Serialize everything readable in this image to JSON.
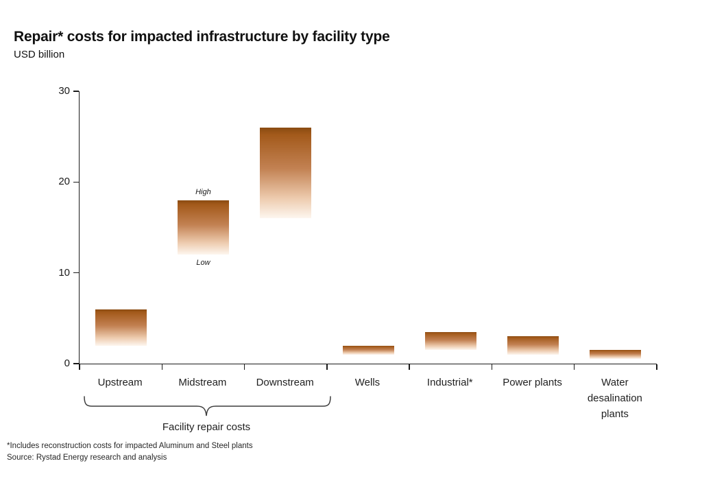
{
  "header": {
    "title": "Repair* costs for impacted infrastructure by facility type",
    "units_label": "USD billion"
  },
  "chart_data": {
    "type": "bar",
    "subtype": "floating range bars (low-high)",
    "title": "Repair* costs for impacted infrastructure by facility type",
    "ylabel": "USD billion",
    "xlabel": "",
    "ylim": [
      0,
      30
    ],
    "yticks": [
      0,
      10,
      20,
      30
    ],
    "grid": false,
    "legend_position": "none",
    "bar_gradient_top": "#8A4B11",
    "bar_gradient_bottom": "#FDF6EF",
    "gradient_stops": [
      "#8A4B11 0%",
      "#A35A1B 8%",
      "#C28152 45%",
      "#EDCBAE 78%",
      "#FDF6EF 100%"
    ],
    "categories": [
      "Upstream",
      "Midstream",
      "Downstream",
      "Wells",
      "Industrial*",
      "Power plants",
      "Water desalination plants"
    ],
    "bars": [
      {
        "category": "Upstream",
        "low": 2,
        "high": 6
      },
      {
        "category": "Midstream",
        "low": 12,
        "high": 18
      },
      {
        "category": "Downstream",
        "low": 16,
        "high": 26
      },
      {
        "category": "Wells",
        "low": 1,
        "high": 2
      },
      {
        "category": "Industrial*",
        "low": 1.5,
        "high": 3.5
      },
      {
        "category": "Power plants",
        "low": 1,
        "high": 3
      },
      {
        "category": "Water desalination plants",
        "low": 0.5,
        "high": 1.5
      }
    ],
    "annotations": [
      {
        "text": "High",
        "bar": "Midstream",
        "anchor": "top"
      },
      {
        "text": "Low",
        "bar": "Midstream",
        "anchor": "bottom"
      }
    ],
    "group_bracket": {
      "label": "Facility repair costs",
      "from": "Upstream",
      "to": "Downstream"
    }
  },
  "footnotes": {
    "note": "*Includes reconstruction costs for impacted Aluminum and Steel plants",
    "source": "Source: Rystad Energy research and analysis"
  }
}
